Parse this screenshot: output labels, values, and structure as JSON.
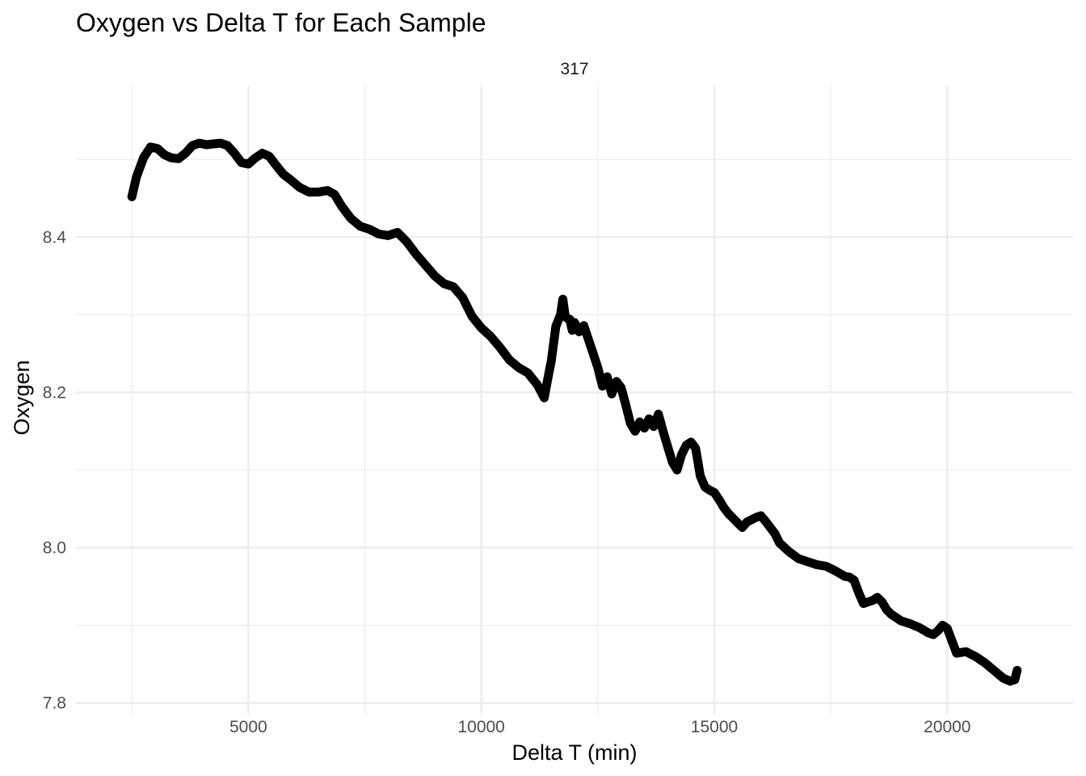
{
  "chart_data": {
    "type": "line",
    "title": "Oxygen vs Delta T for Each Sample",
    "facet_label": "317",
    "xlabel": "Delta T (min)",
    "ylabel": "Oxygen",
    "xlim": [
      1300,
      22700
    ],
    "ylim": [
      7.785,
      8.595
    ],
    "x_ticks": [
      5000,
      10000,
      15000,
      20000
    ],
    "x_tick_labels": [
      "5000",
      "10000",
      "15000",
      "20000"
    ],
    "y_ticks": [
      7.8,
      8.0,
      8.2,
      8.4
    ],
    "y_tick_labels": [
      "7.8",
      "8.0",
      "8.2",
      "8.4"
    ],
    "x_minor_ticks": [
      2500,
      7500,
      12500,
      17500
    ],
    "y_minor_ticks": [
      7.9,
      8.1,
      8.3,
      8.5
    ],
    "grid": true,
    "line_color": "#000000",
    "series": [
      {
        "name": "",
        "x": [
          2500,
          2600,
          2750,
          2900,
          3050,
          3200,
          3350,
          3500,
          3650,
          3800,
          3950,
          4100,
          4250,
          4400,
          4550,
          4700,
          4850,
          5000,
          5150,
          5300,
          5450,
          5600,
          5750,
          5900,
          6100,
          6300,
          6500,
          6700,
          6850,
          7000,
          7200,
          7400,
          7600,
          7800,
          8000,
          8200,
          8400,
          8600,
          8800,
          9000,
          9200,
          9400,
          9600,
          9800,
          10000,
          10200,
          10400,
          10600,
          10800,
          11000,
          11200,
          11350,
          11450,
          11500,
          11600,
          11700,
          11750,
          11800,
          11850,
          11900,
          11950,
          12000,
          12100,
          12200,
          12300,
          12400,
          12500,
          12600,
          12700,
          12800,
          12900,
          13000,
          13100,
          13200,
          13300,
          13400,
          13500,
          13600,
          13700,
          13800,
          13900,
          14000,
          14100,
          14200,
          14300,
          14400,
          14500,
          14600,
          14700,
          14800,
          14900,
          15000,
          15100,
          15200,
          15300,
          15400,
          15500,
          15600,
          15700,
          15800,
          15900,
          16000,
          16100,
          16200,
          16300,
          16400,
          16600,
          16800,
          17000,
          17200,
          17400,
          17600,
          17800,
          17900,
          18000,
          18100,
          18200,
          18300,
          18400,
          18500,
          18600,
          18700,
          18800,
          18900,
          19000,
          19200,
          19400,
          19600,
          19700,
          19800,
          19900,
          20000,
          20100,
          20200,
          20400,
          20600,
          20800,
          21000,
          21200,
          21350,
          21450,
          21500
        ],
        "values": [
          8.452,
          8.478,
          8.502,
          8.516,
          8.514,
          8.506,
          8.502,
          8.501,
          8.508,
          8.518,
          8.521,
          8.519,
          8.52,
          8.521,
          8.518,
          8.508,
          8.496,
          8.494,
          8.502,
          8.508,
          8.504,
          8.492,
          8.481,
          8.474,
          8.464,
          8.458,
          8.458,
          8.46,
          8.455,
          8.44,
          8.424,
          8.414,
          8.41,
          8.404,
          8.402,
          8.406,
          8.394,
          8.378,
          8.364,
          8.35,
          8.34,
          8.336,
          8.322,
          8.298,
          8.283,
          8.272,
          8.258,
          8.242,
          8.232,
          8.225,
          8.21,
          8.193,
          8.225,
          8.24,
          8.285,
          8.3,
          8.32,
          8.298,
          8.295,
          8.294,
          8.28,
          8.29,
          8.278,
          8.286,
          8.268,
          8.25,
          8.232,
          8.208,
          8.22,
          8.198,
          8.214,
          8.206,
          8.184,
          8.16,
          8.15,
          8.162,
          8.154,
          8.166,
          8.156,
          8.172,
          8.15,
          8.13,
          8.11,
          8.1,
          8.12,
          8.132,
          8.136,
          8.128,
          8.092,
          8.078,
          8.074,
          8.071,
          8.062,
          8.052,
          8.044,
          8.038,
          8.032,
          8.026,
          8.033,
          8.036,
          8.039,
          8.041,
          8.034,
          8.026,
          8.018,
          8.006,
          7.995,
          7.986,
          7.982,
          7.978,
          7.976,
          7.97,
          7.963,
          7.962,
          7.958,
          7.942,
          7.928,
          7.93,
          7.932,
          7.936,
          7.93,
          7.92,
          7.914,
          7.91,
          7.906,
          7.902,
          7.897,
          7.89,
          7.888,
          7.893,
          7.9,
          7.896,
          7.88,
          7.864,
          7.866,
          7.86,
          7.852,
          7.842,
          7.832,
          7.828,
          7.83,
          7.842
        ]
      }
    ]
  }
}
